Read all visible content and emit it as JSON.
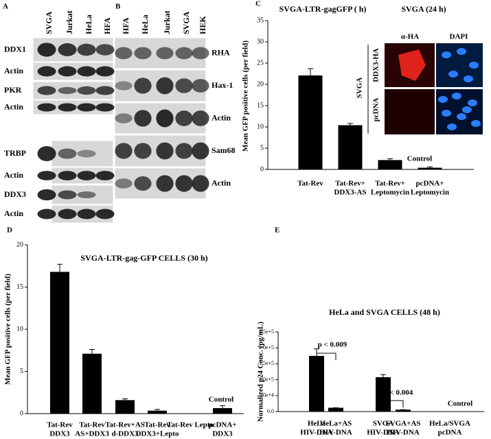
{
  "blots": [
    {
      "label": "A",
      "columns": [
        "SVGA",
        "Jurkat",
        "HeLa",
        "HFA"
      ],
      "rows": [
        "DDX1",
        "Actin",
        "PKR",
        "Actin",
        "TRBP",
        "Actin",
        "DDX3",
        "Actin"
      ]
    },
    {
      "label": "B",
      "columns": [
        "HFA",
        "HeLa",
        "Jurkat",
        "SVGA",
        "HEK"
      ],
      "rows": [
        "RHA",
        "Hax-1",
        "Actin",
        "Sam68",
        "Actin"
      ]
    }
  ],
  "inset": {
    "title": "SVGA (24 h)",
    "columns": [
      "α-HA",
      "DAPI"
    ],
    "group": "SVGA",
    "rows": [
      "DDX3-HA",
      "pcDNA"
    ]
  },
  "chart_data": [
    {
      "panel": "C",
      "type": "bar",
      "title": "SVGA-LTR-gagGFP ( h)",
      "ylabel": "Mean GFP positive cells (per field)",
      "categories": [
        [
          "Tat-Rev"
        ],
        [
          "Tat-Rev+",
          "DDX3-AS"
        ],
        [
          "Tat-Rev+",
          "Leptomycin"
        ],
        [
          "pcDNA+",
          "Leptomycin"
        ]
      ],
      "values": [
        22.1,
        10.4,
        2.2,
        0.4
      ],
      "errors": [
        1.6,
        0.4,
        0.3,
        0.2
      ],
      "color": "#000000",
      "ylim": [
        0,
        35
      ],
      "yticks": [
        0,
        5,
        10,
        15,
        20,
        25,
        30,
        35
      ],
      "annotations": [
        "Control"
      ]
    },
    {
      "panel": "D",
      "type": "bar",
      "title": "SVGA-LTR-gag-GFP CELLS (30 h)",
      "ylabel": "Mean GFP positive cells (per field)",
      "categories": [
        [
          "Tat-Rev",
          "DDX3"
        ],
        [
          "Tat-Rev",
          "AS+DDX3"
        ],
        [
          "Tat-Rev+AS",
          "d-DDX3"
        ],
        [
          "Tat-Rev",
          "DDX3+Lepto"
        ],
        [
          "Tat-Rev Lepto"
        ],
        [
          "pcDNA+",
          "DDX3"
        ]
      ],
      "values": [
        16.8,
        7.1,
        1.6,
        0.35,
        0,
        0.65
      ],
      "errors": [
        0.9,
        0.5,
        0.15,
        0.15,
        0,
        0.3
      ],
      "color": "#000000",
      "ylim": [
        0,
        20
      ],
      "yticks": [
        0,
        5,
        10,
        15,
        20
      ],
      "annotations": [
        "Control"
      ]
    },
    {
      "panel": "E",
      "type": "bar",
      "title": "HeLa and SVGA CELLS (48 h)",
      "ylabel": "Normalized p24 Conc. (pg/mL)",
      "categories": [
        [
          "HeLa",
          "HIV-DNA"
        ],
        [
          "HeLa+AS",
          "HIV-DNA"
        ],
        [
          "SVGA",
          "HIV-DNA"
        ],
        [
          "SVGA+AS",
          "HIV-DNA"
        ],
        [
          "HeLa/SVGA",
          "pcDNA"
        ]
      ],
      "values": [
        175000,
        12000,
        108000,
        6000,
        0
      ],
      "errors": [
        22000,
        0,
        8000,
        0,
        0
      ],
      "color": "#000000",
      "ylim": [
        0,
        250000
      ],
      "yticks": [
        {
          "value": 0,
          "label": "0.0"
        },
        {
          "value": 50000,
          "label": "5.0e+4"
        },
        {
          "value": 100000,
          "label": "1.0e+5"
        },
        {
          "value": 150000,
          "label": "1.5e+5"
        },
        {
          "value": 200000,
          "label": "2.0e+5"
        },
        {
          "value": 250000,
          "label": "2.5e+5"
        }
      ],
      "annotations": [
        "p < 0.009",
        "p < 0.004",
        "Control"
      ]
    }
  ]
}
